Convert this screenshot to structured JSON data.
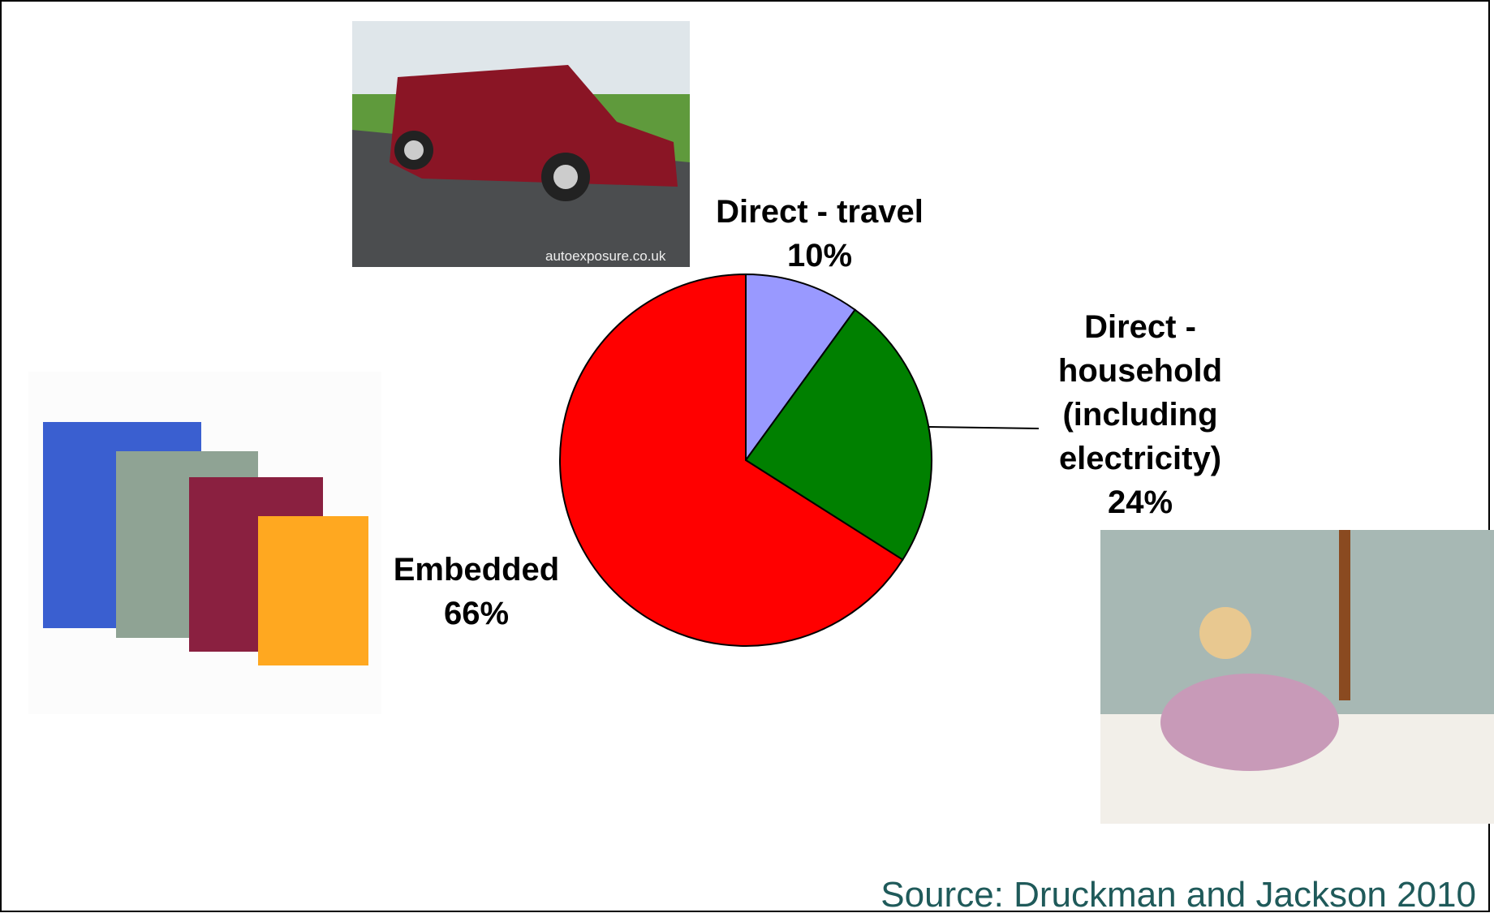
{
  "chart_data": {
    "type": "pie",
    "categories": [
      "Direct - travel",
      "Direct - household (including electricity)",
      "Embedded"
    ],
    "values": [
      10,
      24,
      66
    ],
    "value_labels": [
      "10%",
      "24%",
      "66%"
    ],
    "colors": [
      "#9999ff",
      "#008000",
      "#ff0000"
    ],
    "source": "Source: Druckman and Jackson 2010"
  },
  "photo_watermark": "autoexposure.co.uk"
}
